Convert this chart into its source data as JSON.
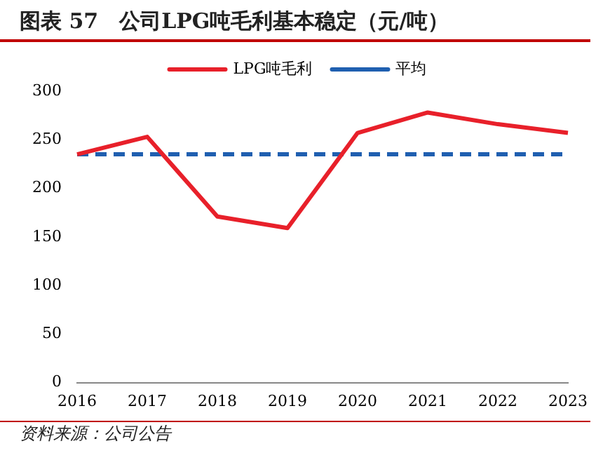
{
  "chart_data": {
    "type": "line",
    "title": "图表 57　公司LPG吨毛利基本稳定（元/吨）",
    "categories": [
      "2016",
      "2017",
      "2018",
      "2019",
      "2020",
      "2021",
      "2022",
      "2023"
    ],
    "series": [
      {
        "name": "LPG吨毛利",
        "color": "#e8202a",
        "values": [
          235,
          253,
          171,
          159,
          257,
          278,
          266,
          257
        ]
      },
      {
        "name": "平均",
        "color": "#1f5fb0",
        "values": [
          235,
          235,
          235,
          235,
          235,
          235,
          235,
          235
        ],
        "line_style": "dashed"
      }
    ],
    "ylim": [
      0,
      300
    ],
    "yticks": [
      0,
      50,
      100,
      150,
      200,
      250,
      300
    ],
    "grid": false,
    "legend": "top",
    "marker": "none",
    "line_style": "solid",
    "annotations": [
      "资料来源：公司公告"
    ]
  }
}
